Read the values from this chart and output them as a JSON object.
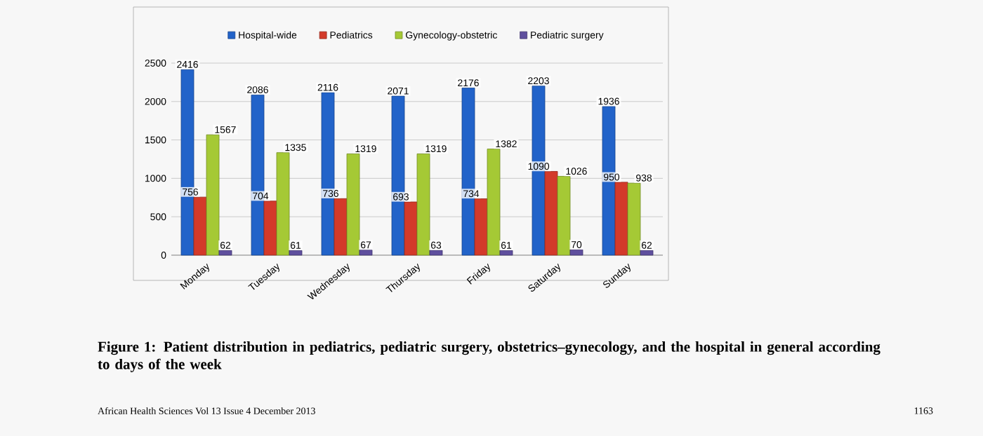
{
  "chart_data": {
    "type": "bar",
    "categories": [
      "Monday",
      "Tuesday",
      "Wednesday",
      "Thursday",
      "Friday",
      "Saturday",
      "Sunday"
    ],
    "series": [
      {
        "name": "Hospital-wide",
        "color": "#2263c9",
        "values": [
          2416,
          2086,
          2116,
          2071,
          2176,
          2203,
          1936
        ]
      },
      {
        "name": "Pediatrics",
        "color": "#d33a2a",
        "values": [
          756,
          704,
          736,
          693,
          734,
          1090,
          950
        ]
      },
      {
        "name": "Gynecology-obstetric",
        "color": "#a5c935",
        "values": [
          1567,
          1335,
          1319,
          1319,
          1382,
          1026,
          938
        ]
      },
      {
        "name": "Pediatric surgery",
        "color": "#5f4f9e",
        "values": [
          62,
          61,
          67,
          63,
          61,
          70,
          62
        ]
      }
    ],
    "ylim": [
      0,
      2500
    ],
    "yticks": [
      0,
      500,
      1000,
      1500,
      2000,
      2500
    ],
    "grid": "y",
    "legend": "top",
    "data_labels": true,
    "annotations": [
      "Figure 1: Patient distribution in pediatrics, pediatric surgery, obstetrics–gynecology, and the hospital in general according to days of the week",
      "African Health Sciences Vol 13  Issue 4 December  2013",
      "1163"
    ]
  }
}
